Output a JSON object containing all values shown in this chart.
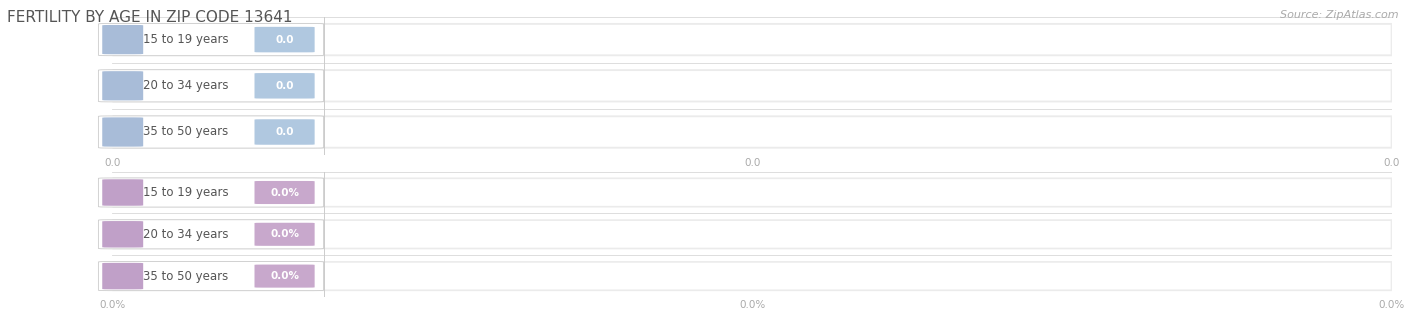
{
  "title": "FERTILITY BY AGE IN ZIP CODE 13641",
  "source": "Source: ZipAtlas.com",
  "categories": [
    "15 to 19 years",
    "20 to 34 years",
    "35 to 50 years"
  ],
  "group1_values": [
    0.0,
    0.0,
    0.0
  ],
  "group2_values": [
    0.0,
    0.0,
    0.0
  ],
  "group1_value_labels": [
    "0.0",
    "0.0",
    "0.0"
  ],
  "group2_value_labels": [
    "0.0%",
    "0.0%",
    "0.0%"
  ],
  "group1_circle_color": "#a8bcd8",
  "group1_pill_bg": "#dce8f5",
  "group1_val_pill_color": "#b0c8e0",
  "group2_circle_color": "#c0a0c8",
  "group2_pill_bg": "#e8d8ec",
  "group2_val_pill_color": "#c8a8cc",
  "bar_bg_color": "#ebebeb",
  "bar_bg_color2": "#f5f5f5",
  "bar_inner_color": "#ffffff",
  "separator_color": "#d8d8d8",
  "vline_color": "#cccccc",
  "bg_color": "#ffffff",
  "title_color": "#555555",
  "label_color": "#555555",
  "tick_color": "#aaaaaa",
  "source_color": "#aaaaaa",
  "title_fontsize": 11,
  "label_fontsize": 8.5,
  "val_fontsize": 7.5,
  "tick_fontsize": 7.5,
  "source_fontsize": 8,
  "xtick_labels1": [
    "0.0",
    "0.0",
    "0.0"
  ],
  "xtick_labels2": [
    "0.0%",
    "0.0%",
    "0.0%"
  ]
}
